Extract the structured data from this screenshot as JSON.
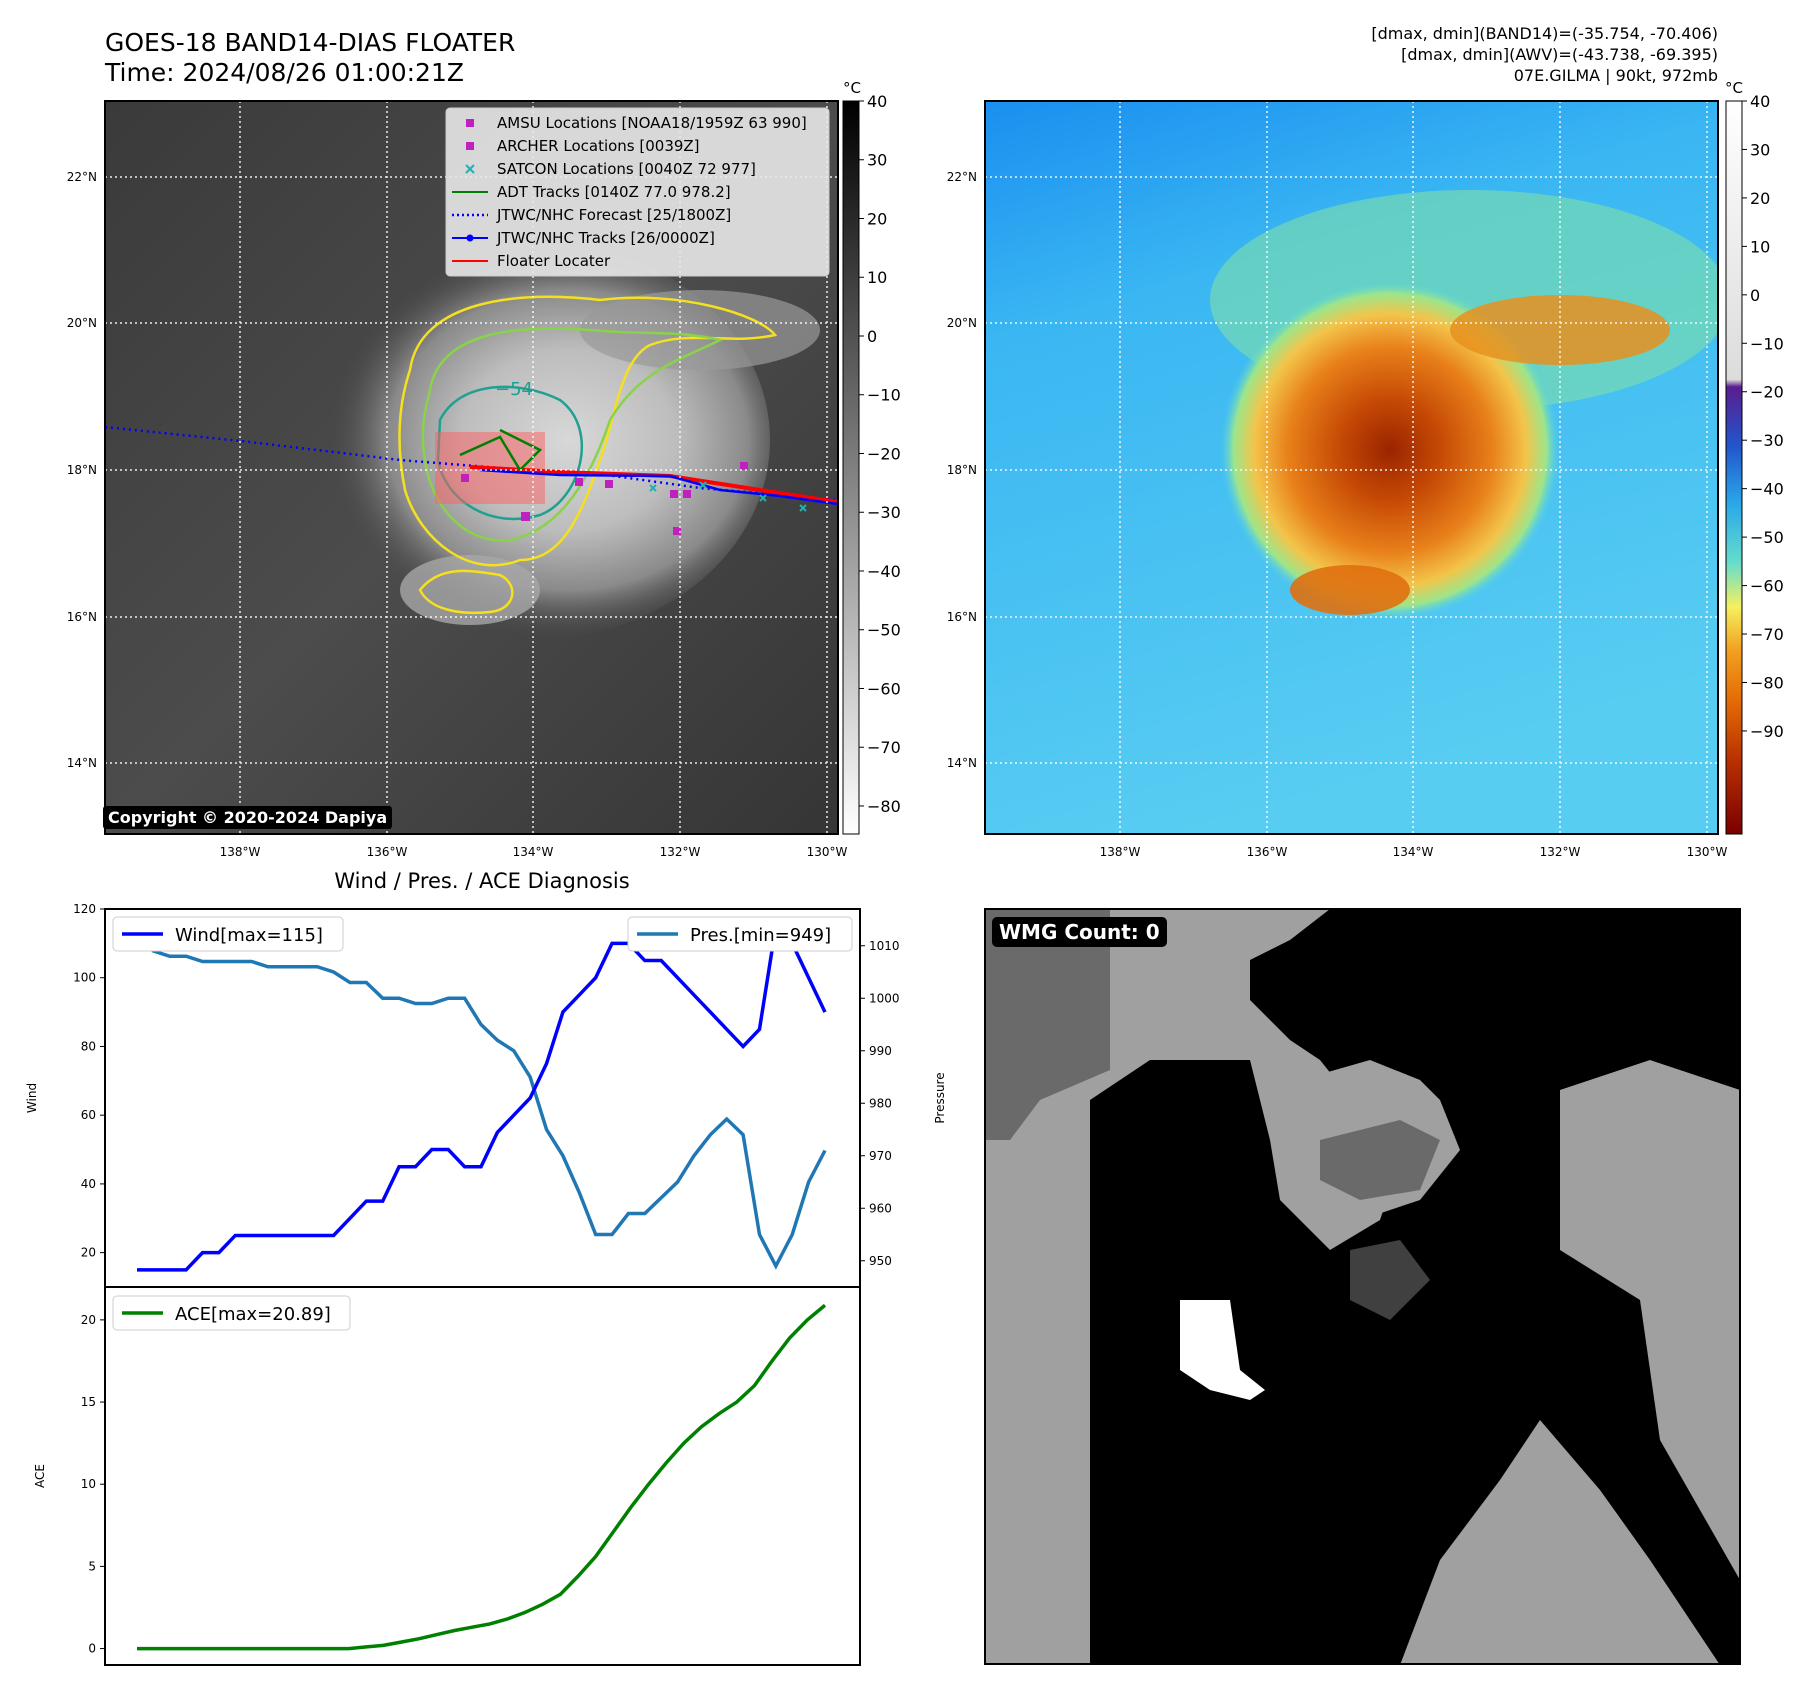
{
  "header": {
    "title_line1": "GOES-18 BAND14-DIAS FLOATER",
    "title_line2": "Time: 2024/08/26 01:00:21Z",
    "info_line1": "[dmax, dmin](BAND14)=(-35.754, -70.406)",
    "info_line2": "[dmax, dmin](AWV)=(-43.738, -69.395)",
    "info_line3": "07E.GILMA | 90kt, 972mb"
  },
  "map": {
    "lat_labels": [
      "22°N",
      "20°N",
      "18°N",
      "16°N",
      "14°N"
    ],
    "lon_labels": [
      "138°W",
      "136°W",
      "134°W",
      "132°W",
      "130°W"
    ],
    "contour_label": "−54",
    "copyright": "Copyright © 2020-2024 Dapiya",
    "legend": [
      {
        "label": "AMSU Locations [NOAA18/1959Z 63 990]",
        "marker": "square",
        "color": "#c020c0"
      },
      {
        "label": "ARCHER Locations [0039Z]",
        "marker": "square",
        "color": "#c020c0"
      },
      {
        "label": "SATCON Locations [0040Z 72 977]",
        "marker": "x",
        "color": "#20b0b0"
      },
      {
        "label": "ADT Tracks [0140Z 77.0 978.2]",
        "marker": "line",
        "color": "#008000"
      },
      {
        "label": "JTWC/NHC Forecast [25/1800Z]",
        "marker": "dotted",
        "color": "#0000ff"
      },
      {
        "label": "JTWC/NHC Tracks [26/0000Z]",
        "marker": "line-dot",
        "color": "#0000ff"
      },
      {
        "label": "Floater Locater",
        "marker": "line",
        "color": "#ff0000"
      }
    ]
  },
  "colorbar_left": {
    "unit": "°C",
    "ticks": [
      "40",
      "30",
      "20",
      "10",
      "0",
      "−10",
      "−20",
      "−30",
      "−40",
      "−50",
      "−60",
      "−70",
      "−80"
    ]
  },
  "colorbar_right": {
    "unit": "°C",
    "ticks": [
      "40",
      "30",
      "20",
      "10",
      "0",
      "−10",
      "−20",
      "−30",
      "−40",
      "−50",
      "−60",
      "−70",
      "−80",
      "−90"
    ]
  },
  "chart_data": [
    {
      "type": "line",
      "title": "Wind / Pres. / ACE Diagnosis",
      "ylabel": "Wind",
      "ylabel_right": "Pressure",
      "ylim": [
        10,
        120
      ],
      "ylim_right": [
        945,
        1017
      ],
      "yticks": [
        20,
        40,
        60,
        80,
        100,
        120
      ],
      "yticks_right": [
        950,
        960,
        970,
        980,
        990,
        1000,
        1010
      ],
      "series": [
        {
          "name": "Wind[max=115]",
          "color": "#0000ff",
          "values": [
            15,
            15,
            15,
            15,
            20,
            20,
            25,
            25,
            25,
            25,
            25,
            25,
            25,
            30,
            35,
            35,
            45,
            45,
            50,
            50,
            45,
            45,
            55,
            60,
            65,
            75,
            90,
            95,
            100,
            110,
            110,
            105,
            105,
            100,
            95,
            90,
            85,
            80,
            85,
            115,
            110,
            100,
            90
          ]
        },
        {
          "name": "Pres.[min=949]",
          "color": "#1f77b4",
          "values": [
            1012,
            1009,
            1008,
            1008,
            1007,
            1007,
            1007,
            1007,
            1006,
            1006,
            1006,
            1006,
            1005,
            1003,
            1003,
            1000,
            1000,
            999,
            999,
            1000,
            1000,
            995,
            992,
            990,
            985,
            975,
            970,
            963,
            955,
            955,
            959,
            959,
            962,
            965,
            970,
            974,
            977,
            974,
            955,
            949,
            955,
            965,
            971
          ]
        }
      ]
    },
    {
      "type": "line",
      "ylabel": "ACE",
      "ylim": [
        -1,
        22
      ],
      "yticks": [
        0,
        5,
        10,
        15,
        20
      ],
      "series": [
        {
          "name": "ACE[max=20.89]",
          "color": "#008000",
          "values": [
            0,
            0,
            0,
            0,
            0,
            0,
            0,
            0,
            0,
            0,
            0,
            0,
            0,
            0.1,
            0.2,
            0.4,
            0.6,
            0.85,
            1.1,
            1.3,
            1.5,
            1.8,
            2.2,
            2.7,
            3.3,
            4.4,
            5.6,
            7.1,
            8.6,
            10,
            11.3,
            12.5,
            13.5,
            14.3,
            15,
            16,
            17.5,
            18.9,
            20,
            20.89
          ]
        }
      ]
    }
  ],
  "wmg": {
    "label": "WMG Count: 0"
  }
}
